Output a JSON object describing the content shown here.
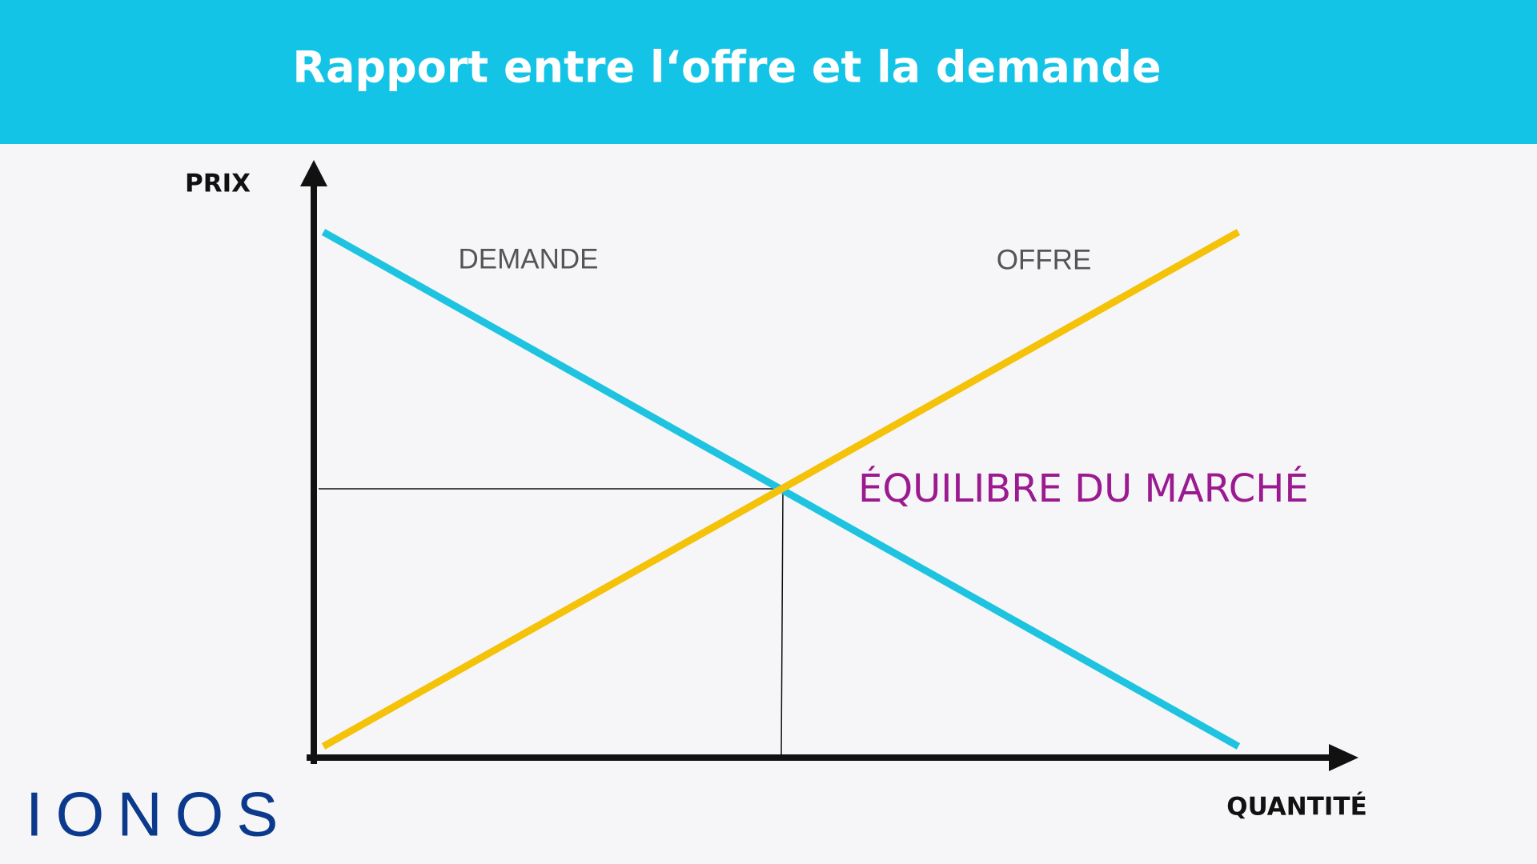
{
  "header": {
    "title": "Rapport entre l‘offre et la demande"
  },
  "axes": {
    "y_label": "PRIX",
    "x_label": "QUANTITÉ"
  },
  "curves": {
    "demand_label": "DEMANDE",
    "supply_label": "OFFRE"
  },
  "equilibrium": {
    "label": "ÉQUILIBRE DU MARCHÉ"
  },
  "logo": {
    "text": "IONOS"
  }
}
